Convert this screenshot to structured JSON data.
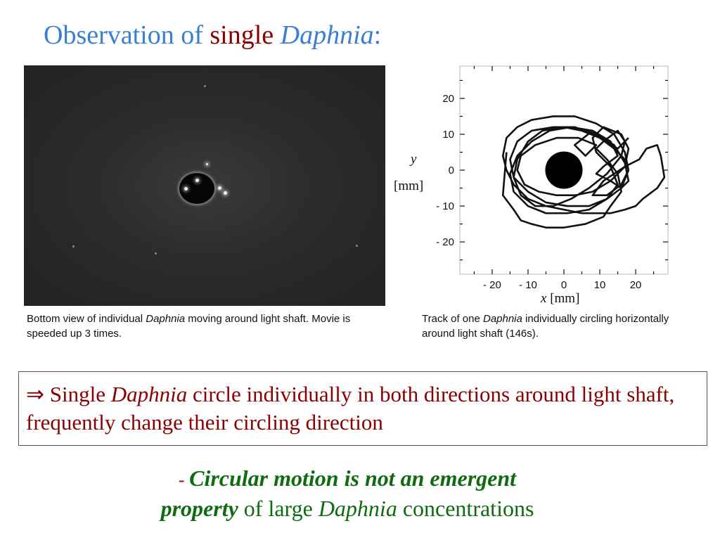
{
  "title": {
    "part1": "Observation of ",
    "part2": "single",
    "part3": "Daphnia",
    "part4": ":"
  },
  "left_caption": {
    "part1": "Bottom view of individual ",
    "part2": "Daphnia",
    "part3": " moving around light shaft. Movie is speeded up 3 times."
  },
  "right_caption": {
    "part1": "Track of one ",
    "part2": "Daphnia",
    "part3": " individually circling horizontally around light shaft (146s)."
  },
  "chart_data": {
    "type": "line",
    "xlabel_var": "x",
    "xlabel_unit": "[mm]",
    "ylabel_var": "y",
    "ylabel_unit": "[mm]",
    "xlim": [
      -29,
      29
    ],
    "ylim": [
      -29,
      29
    ],
    "xticks": [
      -20,
      -10,
      0,
      10,
      20
    ],
    "yticks": [
      20,
      10,
      0,
      -10,
      -20
    ],
    "xtick_labels": [
      "- 20",
      "- 10",
      "0",
      "10",
      "20"
    ],
    "ytick_labels": [
      "20",
      "10",
      "0",
      "- 10",
      "- 20"
    ],
    "shaft_radius": 5.2,
    "track": {
      "x": [
        -16,
        -17,
        -14,
        -12,
        -9,
        -5,
        0,
        6,
        11,
        13,
        16,
        15,
        12,
        9,
        11,
        15,
        17,
        16,
        12,
        7,
        2,
        -3,
        -8,
        -12,
        -14,
        -13,
        -10,
        -6,
        0,
        5,
        10,
        14,
        17,
        18,
        16,
        12,
        8,
        11,
        17,
        21,
        23,
        26,
        27,
        28,
        26,
        22,
        20,
        17,
        13,
        9,
        5,
        0,
        -5,
        -10,
        -14,
        -16,
        -17,
        -16,
        -13,
        -9,
        -3,
        3,
        9,
        14,
        17,
        18,
        16,
        12,
        7,
        1,
        -5,
        -10,
        -14,
        -15,
        -13,
        -9,
        -4,
        2,
        8,
        13,
        15,
        11,
        9,
        13,
        16,
        18,
        17,
        14,
        9,
        3,
        -3,
        -9,
        -13,
        -15,
        -14,
        -10,
        -5,
        1,
        7,
        12,
        15,
        13,
        9,
        8,
        11,
        16,
        18,
        17,
        13,
        8,
        3,
        -2,
        -7,
        -11,
        -13,
        -12,
        -8,
        -2,
        4,
        9,
        6,
        3,
        8,
        12,
        15,
        18
      ],
      "y": [
        5,
        -7,
        -11,
        -14,
        -15,
        -16,
        -16,
        -15,
        -13,
        -10,
        -6,
        -1,
        3,
        6,
        8,
        11,
        8,
        4,
        -1,
        -5,
        -8,
        -10,
        -10,
        -7,
        -2,
        3,
        8,
        11,
        12,
        11,
        9,
        6,
        3,
        0,
        -4,
        -7,
        -7,
        -3,
        1,
        3,
        6,
        7,
        4,
        -2,
        -5,
        -8,
        -10,
        -11,
        -12,
        -12,
        -12,
        -11,
        -10,
        -8,
        -4,
        0,
        4,
        9,
        12,
        14,
        15,
        15,
        13,
        10,
        5,
        0,
        -5,
        -8,
        -11,
        -12,
        -12,
        -10,
        -6,
        -1,
        4,
        8,
        11,
        12,
        11,
        8,
        4,
        1,
        -1,
        -3,
        -5,
        -3,
        2,
        7,
        10,
        12,
        12,
        11,
        8,
        3,
        -2,
        -6,
        -9,
        -10,
        -10,
        -8,
        -4,
        1,
        5,
        9,
        12,
        10,
        6,
        1,
        -3,
        -6,
        -7,
        -7,
        -6,
        -4,
        0,
        4,
        7,
        9,
        9,
        7,
        4,
        7,
        11,
        8,
        6,
        9
      ]
    },
    "colors": {
      "track": "#111111",
      "shaft": "#000000",
      "frame": "#bbbbbb"
    }
  },
  "conclusion": {
    "arrow": "⇒",
    "part1": " Single ",
    "part2": "Daphnia",
    "part3": " circle individually in both directions around light shaft, frequently change their circling direction"
  },
  "note": {
    "dash": "- ",
    "bold1": "Circular motion is not an emergent",
    "bold2": "property",
    "part3": " of large ",
    "part4": "Daphnia",
    "part5": " concentrations"
  },
  "colors": {
    "title_blue": "#3b7fd4",
    "dark_red": "#8b0000",
    "green": "#0f6b0f"
  }
}
